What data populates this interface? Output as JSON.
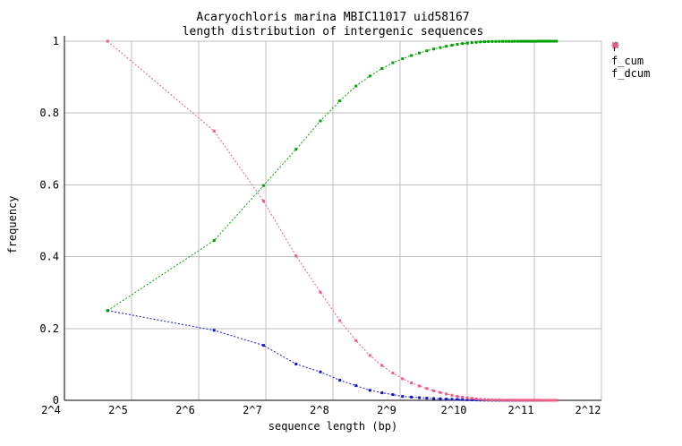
{
  "title": {
    "line1": "Acaryochloris marina MBIC11017 uid58167",
    "line2": "length distribution of intergenic sequences"
  },
  "axes": {
    "x_label": "sequence length (bp)",
    "y_label": "frequency",
    "x_ticks": [
      "2^4",
      "2^5",
      "2^6",
      "2^7",
      "2^8",
      "2^9",
      "2^10",
      "2^11",
      "2^12"
    ],
    "y_ticks": [
      "0",
      "0.2",
      "0.4",
      "0.6",
      "0.8",
      "1"
    ],
    "y_tick_values": [
      0,
      0.2,
      0.4,
      0.6,
      0.8,
      1
    ]
  },
  "legend": {
    "items": [
      {
        "label": "f",
        "color": "#1414cc"
      },
      {
        "label": "f_cum",
        "color": "#00a000"
      },
      {
        "label": "f_dcum",
        "color": "#ee5c85"
      }
    ]
  },
  "colors": {
    "grid": "#bfbfbf",
    "axis": "#000000",
    "background": "#ffffff"
  },
  "chart_data": {
    "type": "line",
    "title": "Acaryochloris marina MBIC11017 uid58167 — length distribution of intergenic sequences",
    "xlabel": "sequence length (bp)",
    "ylabel": "frequency",
    "x_scale": "log2",
    "x_range": [
      16,
      4096
    ],
    "ylim": [
      0,
      1
    ],
    "grid": true,
    "legend_position": "outside-top-right",
    "marker": "square",
    "x_bp": [
      25,
      75,
      125,
      175,
      225,
      275,
      325,
      375,
      425,
      475,
      525,
      575,
      625,
      675,
      725,
      775,
      825,
      875,
      925,
      975,
      1025,
      1075,
      1125,
      1175,
      1225,
      1275,
      1325,
      1375,
      1425,
      1475,
      1525,
      1575,
      1625,
      1675,
      1725,
      1775,
      1825,
      1875,
      1925,
      1975,
      2025,
      2075,
      2125,
      2175,
      2225,
      2275,
      2325,
      2375,
      2425,
      2475,
      2525,
      2575
    ],
    "series": [
      {
        "name": "f",
        "color": "#1414cc",
        "values": [
          0.25,
          0.195,
          0.153,
          0.101,
          0.079,
          0.056,
          0.041,
          0.028,
          0.021,
          0.016,
          0.011,
          0.009,
          0.0072,
          0.006,
          0.005,
          0.0042,
          0.0035,
          0.0029,
          0.0024,
          0.002,
          0.0016,
          0.0013,
          0.001,
          0.0008,
          0.0006,
          0.0005,
          0.0002,
          0.0001,
          8e-05,
          7e-05,
          6e-05,
          5e-05,
          5e-05,
          4e-05,
          4e-05,
          3e-05,
          3e-05,
          3e-05,
          2e-05,
          2e-05,
          2e-05,
          2e-05,
          2e-05,
          1e-05,
          1e-05,
          1e-05,
          1e-05,
          1e-05,
          1e-05,
          1e-05,
          1e-05,
          4e-05
        ]
      },
      {
        "name": "f_cum",
        "color": "#00a000",
        "values": [
          0.25,
          0.445,
          0.598,
          0.699,
          0.778,
          0.834,
          0.875,
          0.903,
          0.924,
          0.94,
          0.951,
          0.96,
          0.9672,
          0.9732,
          0.9782,
          0.9824,
          0.9859,
          0.9888,
          0.9912,
          0.9932,
          0.9948,
          0.9961,
          0.9971,
          0.9979,
          0.9985,
          0.999,
          0.9992,
          0.9993,
          0.99938,
          0.99945,
          0.99951,
          0.99956,
          0.99961,
          0.99965,
          0.99969,
          0.99972,
          0.99975,
          0.99978,
          0.9998,
          0.99982,
          0.99984,
          0.99986,
          0.99988,
          0.99989,
          0.9999,
          0.99991,
          0.99992,
          0.99993,
          0.99994,
          0.99995,
          0.99996,
          1.0
        ]
      },
      {
        "name": "f_dcum",
        "color": "#ee5c85",
        "values": [
          1.0,
          0.75,
          0.555,
          0.402,
          0.301,
          0.222,
          0.166,
          0.125,
          0.097,
          0.076,
          0.06,
          0.049,
          0.04,
          0.0328,
          0.0268,
          0.0218,
          0.0176,
          0.0141,
          0.0112,
          0.0088,
          0.0068,
          0.0052,
          0.0039,
          0.0029,
          0.0021,
          0.0015,
          0.001,
          0.0008,
          0.0007,
          0.00062,
          0.00055,
          0.00049,
          0.00044,
          0.00039,
          0.00035,
          0.00031,
          0.00028,
          0.00025,
          0.00022,
          0.0002,
          0.00018,
          0.00016,
          0.00014,
          0.00012,
          0.00011,
          0.0001,
          9e-05,
          8e-05,
          7e-05,
          6e-05,
          5e-05,
          4e-05
        ]
      }
    ]
  }
}
